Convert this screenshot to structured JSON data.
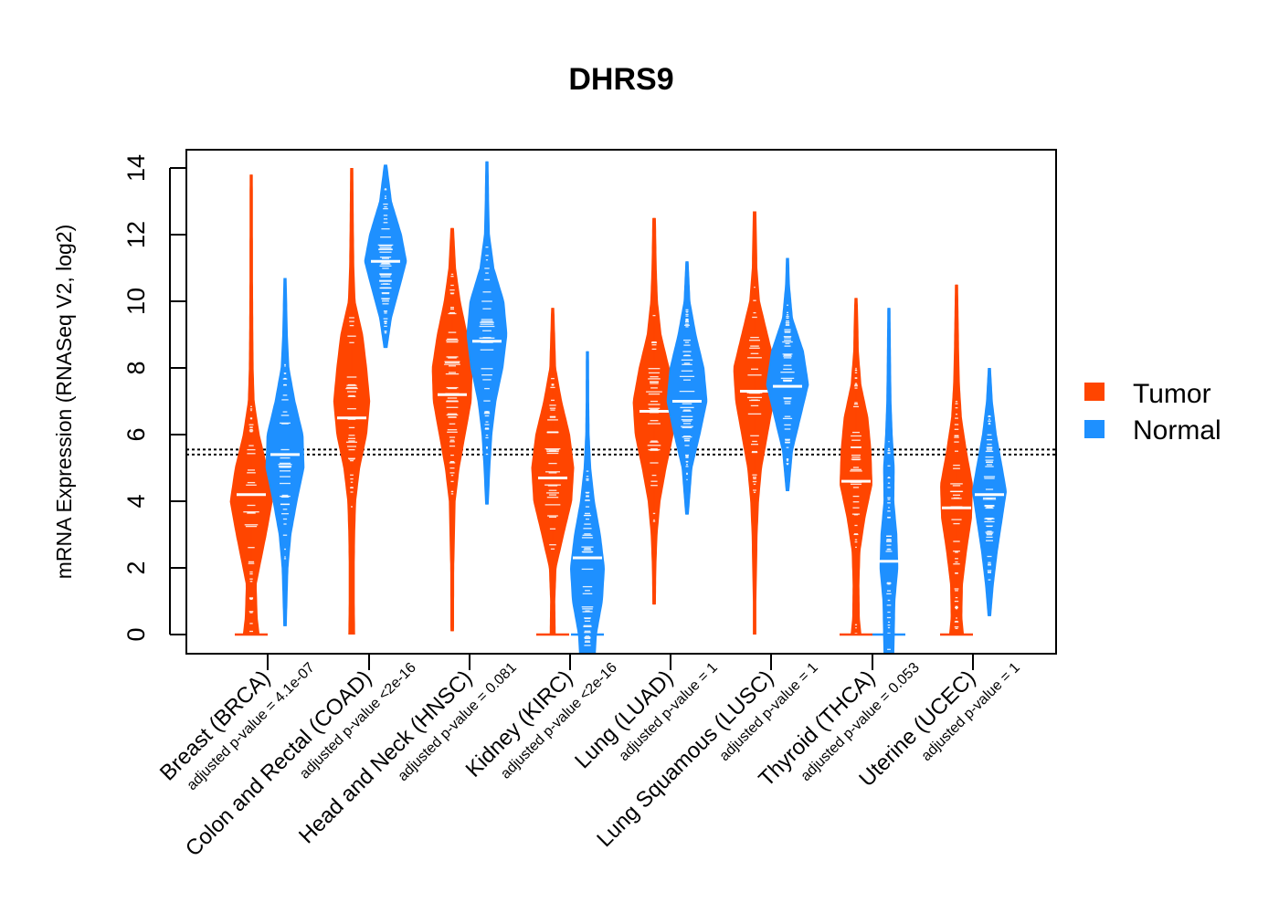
{
  "chart_data": {
    "type": "violin",
    "title": "DHRS9",
    "ylabel": "mRNA Expression (RNASeq V2, log2)",
    "xlabel": "",
    "ylim": [
      -0.55,
      14.6
    ],
    "y_ticks": [
      0,
      2,
      4,
      6,
      8,
      10,
      12,
      14
    ],
    "reference_lines": [
      5.4,
      5.55
    ],
    "legend": {
      "position": "right",
      "entries": [
        {
          "name": "Tumor",
          "color": "#FF4500"
        },
        {
          "name": "Normal",
          "color": "#1E90FF"
        }
      ]
    },
    "categories": [
      {
        "label": "Breast (BRCA)",
        "pvalue": "adjusted p-value = 4.1e-07"
      },
      {
        "label": "Colon and Rectal (COAD)",
        "pvalue": "adjusted p-value <2e-16"
      },
      {
        "label": "Head and Neck (HNSC)",
        "pvalue": "adjusted p-value = 0.081"
      },
      {
        "label": "Kidney (KIRC)",
        "pvalue": "adjusted p-value <2e-16"
      },
      {
        "label": "Lung (LUAD)",
        "pvalue": "adjusted p-value = 1"
      },
      {
        "label": "Lung Squamous (LUSC)",
        "pvalue": "adjusted p-value = 1"
      },
      {
        "label": "Thyroid (THCA)",
        "pvalue": "adjusted p-value = 0.053"
      },
      {
        "label": "Uterine (UCEC)",
        "pvalue": "adjusted p-value = 1"
      }
    ],
    "series": [
      {
        "name": "Tumor",
        "color": "#FF4500",
        "groups": [
          {
            "median": 4.2,
            "min": 0,
            "max": 13.8,
            "density": [
              [
                0,
                0.35
              ],
              [
                0.5,
                0.25
              ],
              [
                1.5,
                0.2
              ],
              [
                3,
                0.7
              ],
              [
                4,
                1
              ],
              [
                5,
                0.75
              ],
              [
                6,
                0.35
              ],
              [
                7,
                0.1
              ],
              [
                8,
                0.05
              ],
              [
                9.5,
                0.03
              ],
              [
                10.5,
                0.02
              ],
              [
                13.8,
                0.01
              ]
            ],
            "floor_mark": true
          },
          {
            "median": 6.5,
            "min": 0,
            "max": 14.0,
            "density": [
              [
                0,
                0.1
              ],
              [
                1,
                0.08
              ],
              [
                2,
                0.08
              ],
              [
                3,
                0.1
              ],
              [
                4,
                0.15
              ],
              [
                5,
                0.35
              ],
              [
                6,
                0.7
              ],
              [
                7,
                0.85
              ],
              [
                8,
                0.7
              ],
              [
                9,
                0.5
              ],
              [
                10,
                0.12
              ],
              [
                11,
                0.06
              ],
              [
                12,
                0.04
              ],
              [
                14,
                0.01
              ]
            ],
            "floor_mark": false
          },
          {
            "median": 7.2,
            "min": 0.1,
            "max": 12.2,
            "density": [
              [
                0.1,
                0.02
              ],
              [
                2,
                0.03
              ],
              [
                4,
                0.1
              ],
              [
                5,
                0.3
              ],
              [
                6,
                0.6
              ],
              [
                7,
                0.9
              ],
              [
                8,
                0.95
              ],
              [
                9,
                0.7
              ],
              [
                10,
                0.35
              ],
              [
                11,
                0.12
              ],
              [
                12.2,
                0.02
              ]
            ],
            "floor_mark": false
          },
          {
            "median": 4.7,
            "min": 0,
            "max": 9.8,
            "density": [
              [
                0,
                0.08
              ],
              [
                1,
                0.06
              ],
              [
                2,
                0.12
              ],
              [
                3,
                0.5
              ],
              [
                4,
                0.9
              ],
              [
                5,
                1
              ],
              [
                6,
                0.8
              ],
              [
                7,
                0.4
              ],
              [
                8,
                0.1
              ],
              [
                9,
                0.05
              ],
              [
                9.8,
                0.01
              ]
            ],
            "floor_mark": true
          },
          {
            "median": 6.7,
            "min": 0.9,
            "max": 12.5,
            "density": [
              [
                0.9,
                0.02
              ],
              [
                2,
                0.04
              ],
              [
                3,
                0.1
              ],
              [
                4,
                0.25
              ],
              [
                5,
                0.55
              ],
              [
                6,
                0.9
              ],
              [
                7,
                1
              ],
              [
                8,
                0.7
              ],
              [
                9,
                0.3
              ],
              [
                10,
                0.12
              ],
              [
                11,
                0.06
              ],
              [
                12.5,
                0.02
              ]
            ],
            "floor_mark": false
          },
          {
            "median": 7.3,
            "min": 0,
            "max": 12.7,
            "density": [
              [
                0,
                0.02
              ],
              [
                1,
                0.02
              ],
              [
                2,
                0.05
              ],
              [
                3,
                0.08
              ],
              [
                4,
                0.15
              ],
              [
                5,
                0.3
              ],
              [
                6,
                0.6
              ],
              [
                7,
                0.9
              ],
              [
                8,
                1
              ],
              [
                9,
                0.6
              ],
              [
                10,
                0.2
              ],
              [
                11,
                0.07
              ],
              [
                12.7,
                0.02
              ]
            ],
            "floor_mark": false
          },
          {
            "median": 4.6,
            "min": 0,
            "max": 10.1,
            "density": [
              [
                0,
                0.2
              ],
              [
                0.5,
                0.12
              ],
              [
                1.5,
                0.1
              ],
              [
                2.5,
                0.15
              ],
              [
                3.5,
                0.4
              ],
              [
                4.5,
                0.75
              ],
              [
                5.5,
                0.7
              ],
              [
                6.5,
                0.55
              ],
              [
                7.5,
                0.2
              ],
              [
                8.5,
                0.07
              ],
              [
                9.5,
                0.04
              ],
              [
                10.1,
                0.01
              ]
            ],
            "floor_mark": true
          },
          {
            "median": 3.8,
            "min": 0,
            "max": 10.5,
            "density": [
              [
                0,
                0.3
              ],
              [
                0.5,
                0.22
              ],
              [
                1.5,
                0.25
              ],
              [
                2.5,
                0.45
              ],
              [
                3.5,
                0.7
              ],
              [
                4.5,
                0.75
              ],
              [
                5.5,
                0.45
              ],
              [
                6.5,
                0.2
              ],
              [
                7.5,
                0.1
              ],
              [
                8.5,
                0.06
              ],
              [
                10.5,
                0.01
              ]
            ],
            "floor_mark": true
          }
        ]
      },
      {
        "name": "Normal",
        "color": "#1E90FF",
        "groups": [
          {
            "median": 5.4,
            "min": 0.25,
            "max": 10.7,
            "density": [
              [
                0.25,
                0.02
              ],
              [
                1,
                0.05
              ],
              [
                2,
                0.1
              ],
              [
                3,
                0.25
              ],
              [
                4,
                0.55
              ],
              [
                5,
                0.9
              ],
              [
                6,
                0.85
              ],
              [
                7,
                0.45
              ],
              [
                8,
                0.15
              ],
              [
                9,
                0.07
              ],
              [
                10.7,
                0.01
              ]
            ],
            "floor_mark": false
          },
          {
            "median": 11.2,
            "min": 8.6,
            "max": 14.1,
            "density": [
              [
                8.6,
                0.03
              ],
              [
                9.5,
                0.25
              ],
              [
                10.5,
                0.7
              ],
              [
                11.2,
                1
              ],
              [
                12,
                0.75
              ],
              [
                13,
                0.25
              ],
              [
                14.1,
                0.02
              ]
            ],
            "floor_mark": false
          },
          {
            "median": 8.8,
            "min": 3.9,
            "max": 14.2,
            "density": [
              [
                3.9,
                0.02
              ],
              [
                5,
                0.1
              ],
              [
                6,
                0.2
              ],
              [
                7,
                0.4
              ],
              [
                8,
                0.75
              ],
              [
                9,
                0.95
              ],
              [
                10,
                0.8
              ],
              [
                11,
                0.3
              ],
              [
                12,
                0.08
              ],
              [
                13,
                0.04
              ],
              [
                14.2,
                0.01
              ]
            ],
            "floor_mark": false
          },
          {
            "median": 2.3,
            "min": -0.55,
            "max": 8.5,
            "density": [
              [
                -0.55,
                0.35
              ],
              [
                0,
                0.4
              ],
              [
                1,
                0.7
              ],
              [
                2,
                0.8
              ],
              [
                3,
                0.6
              ],
              [
                4,
                0.3
              ],
              [
                5,
                0.12
              ],
              [
                6,
                0.04
              ],
              [
                7,
                0.02
              ],
              [
                8.5,
                0.01
              ]
            ],
            "floor_mark": true
          },
          {
            "median": 7.0,
            "min": 3.6,
            "max": 11.2,
            "density": [
              [
                3.6,
                0.02
              ],
              [
                5,
                0.2
              ],
              [
                6,
                0.6
              ],
              [
                7,
                0.95
              ],
              [
                8,
                0.8
              ],
              [
                9,
                0.4
              ],
              [
                10,
                0.1
              ],
              [
                11.2,
                0.01
              ]
            ],
            "floor_mark": false
          },
          {
            "median": 7.45,
            "min": 4.3,
            "max": 11.3,
            "density": [
              [
                4.3,
                0.02
              ],
              [
                5.5,
                0.2
              ],
              [
                6.5,
                0.6
              ],
              [
                7.5,
                1
              ],
              [
                8.5,
                0.75
              ],
              [
                9.5,
                0.2
              ],
              [
                10.5,
                0.05
              ],
              [
                11.3,
                0.01
              ]
            ],
            "floor_mark": false
          },
          {
            "median": 2.2,
            "min": -0.55,
            "max": 9.8,
            "density": [
              [
                -0.55,
                0.2
              ],
              [
                0,
                0.22
              ],
              [
                1,
                0.25
              ],
              [
                2,
                0.4
              ],
              [
                3,
                0.35
              ],
              [
                4,
                0.2
              ],
              [
                5,
                0.22
              ],
              [
                6,
                0.12
              ],
              [
                7,
                0.06
              ],
              [
                8,
                0.04
              ],
              [
                9.8,
                0.01
              ]
            ],
            "floor_mark": true
          },
          {
            "median": 4.2,
            "min": 0.55,
            "max": 8.0,
            "density": [
              [
                0.55,
                0.02
              ],
              [
                1.5,
                0.15
              ],
              [
                2.5,
                0.35
              ],
              [
                3.5,
                0.6
              ],
              [
                4.3,
                0.8
              ],
              [
                5,
                0.6
              ],
              [
                6,
                0.3
              ],
              [
                7,
                0.1
              ],
              [
                8,
                0.01
              ]
            ],
            "floor_mark": false
          }
        ]
      }
    ]
  }
}
